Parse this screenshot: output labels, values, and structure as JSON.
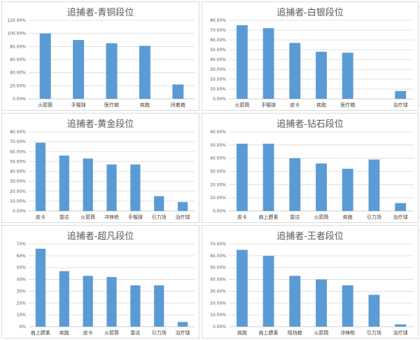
{
  "colors": {
    "bar": "#5b9bd5",
    "grid": "#d9d9d9",
    "axis": "#bfbfbf",
    "text": "#595959"
  },
  "chart_data": [
    {
      "type": "bar",
      "title": "追捕者-青铜段位",
      "categories": [
        "火箭筒",
        "手榴弹",
        "医疗箱",
        "疾跑",
        "闭着箱"
      ],
      "values": [
        100,
        90,
        85,
        81,
        22
      ],
      "ylim": [
        0,
        120
      ],
      "yticks": [
        0,
        20,
        40,
        60,
        80,
        100,
        120
      ],
      "ytick_labels": [
        "0.00%",
        "20.00%",
        "40.00%",
        "60.00%",
        "80.00%",
        "100.00%",
        "120.00%"
      ],
      "grid": true,
      "legend": "none",
      "xlabel": "",
      "ylabel": ""
    },
    {
      "type": "bar",
      "title": "追捕者-白银段位",
      "categories": [
        "火箭筒",
        "手榴弹",
        "皮卡",
        "疾跑",
        "医疗箱",
        "",
        "治疗球"
      ],
      "values": [
        75,
        72,
        57,
        48,
        47,
        0,
        8
      ],
      "ylim": [
        0,
        80
      ],
      "yticks": [
        0,
        10,
        20,
        30,
        40,
        50,
        60,
        70,
        80
      ],
      "ytick_labels": [
        "0.00%",
        "10.00%",
        "20.00%",
        "30.00%",
        "40.00%",
        "50.00%",
        "60.00%",
        "70.00%",
        "80.00%"
      ],
      "grid": true,
      "legend": "none",
      "xlabel": "",
      "ylabel": ""
    },
    {
      "type": "bar",
      "title": "追捕者-黄金段位",
      "categories": [
        "皮卡",
        "雷达",
        "火箭筒",
        "冲锋枪",
        "手榴弹",
        "引力场",
        "治疗球"
      ],
      "values": [
        69,
        56,
        53,
        47,
        47,
        15,
        9
      ],
      "ylim": [
        0,
        80
      ],
      "yticks": [
        0,
        10,
        20,
        30,
        40,
        50,
        60,
        70,
        80
      ],
      "ytick_labels": [
        "0.00%",
        "10.00%",
        "20.00%",
        "30.00%",
        "40.00%",
        "50.00%",
        "60.00%",
        "70.00%",
        "80.00%"
      ],
      "grid": true,
      "legend": "none",
      "xlabel": "",
      "ylabel": ""
    },
    {
      "type": "bar",
      "title": "追捕者-钻石段位",
      "categories": [
        "皮卡",
        "肩上膘素",
        "雷达",
        "火箭筒",
        "疾跑",
        "引力场",
        "治疗球"
      ],
      "values": [
        51,
        51,
        40,
        36,
        32,
        39,
        6
      ],
      "ylim": [
        0,
        60
      ],
      "yticks": [
        0,
        10,
        20,
        30,
        40,
        50,
        60
      ],
      "ytick_labels": [
        "0.00%",
        "10.00%",
        "20.00%",
        "30.00%",
        "40.00%",
        "50.00%",
        "60.00%"
      ],
      "grid": true,
      "legend": "none",
      "xlabel": "",
      "ylabel": ""
    },
    {
      "type": "bar",
      "title": "追捕者-超凡段位",
      "categories": [
        "肩上膘素",
        "疾跑",
        "皮卡",
        "火箭筒",
        "雷达",
        "引力场",
        "治疗球"
      ],
      "values": [
        66,
        47,
        43,
        42,
        35,
        35,
        4
      ],
      "ylim": [
        0,
        70
      ],
      "yticks": [
        0,
        10,
        20,
        30,
        40,
        50,
        60,
        70
      ],
      "ytick_labels": [
        "0%",
        "10%",
        "20%",
        "30%",
        "40%",
        "50%",
        "60%",
        "70%"
      ],
      "grid": true,
      "legend": "none",
      "xlabel": "",
      "ylabel": ""
    },
    {
      "type": "bar",
      "title": "追捕者-王者段位",
      "categories": [
        "疾跑",
        "肩上膘素",
        "阻挡箱",
        "火箭筒",
        "冲锋枪",
        "引力场",
        "治疗球"
      ],
      "values": [
        65,
        60,
        43,
        40,
        35,
        27,
        2
      ],
      "ylim": [
        0,
        70
      ],
      "yticks": [
        0,
        10,
        20,
        30,
        40,
        50,
        60,
        70
      ],
      "ytick_labels": [
        "0.00%",
        "10.00%",
        "20.00%",
        "30.00%",
        "40.00%",
        "50.00%",
        "60.00%",
        "70.00%"
      ],
      "grid": true,
      "legend": "none",
      "xlabel": "",
      "ylabel": ""
    }
  ]
}
